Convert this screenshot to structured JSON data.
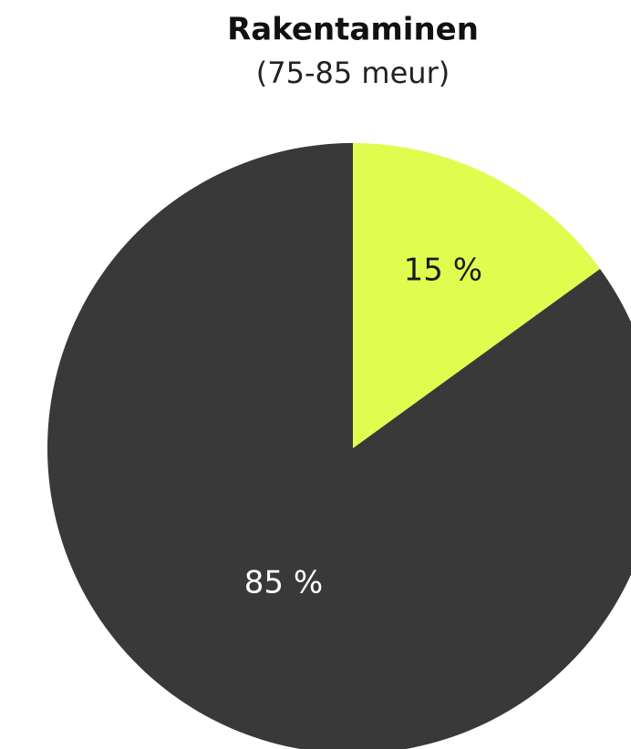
{
  "chart_data": {
    "type": "pie",
    "title": "Rakentaminen",
    "subtitle": "(75-85 meur)",
    "categories": [
      null,
      null
    ],
    "values": [
      15,
      85
    ],
    "value_labels": [
      "15 %",
      "85 %"
    ],
    "colors": [
      "#e0fc4f",
      "#393939"
    ],
    "label_colors": [
      "#1a1a1a",
      "#ffffff"
    ]
  }
}
